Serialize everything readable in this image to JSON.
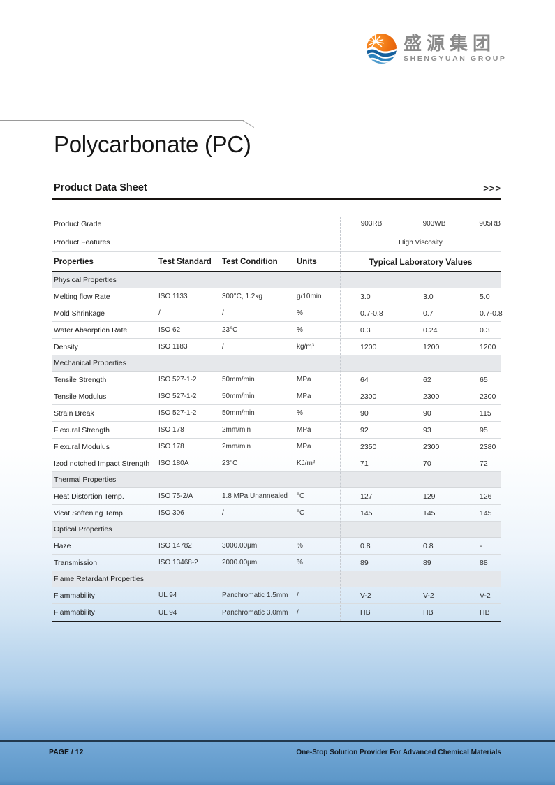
{
  "logo": {
    "company_cn": "盛源集团",
    "company_en": "SHENGYUAN GROUP",
    "colors": {
      "sun_orange": "#e8630c",
      "wave_dark": "#15609d",
      "wave_mid": "#2c82bd",
      "wave_light": "#4d9bcd",
      "text_gray": "#8a8a8a"
    }
  },
  "page": {
    "title": "Polycarbonate (PC)",
    "subtitle": "Product Data Sheet",
    "subtitle_arrows": ">>>"
  },
  "table": {
    "meta_rows": [
      {
        "label": "Product Grade",
        "values": [
          "903RB",
          "903WB",
          "905RB"
        ]
      },
      {
        "label": "Product Features",
        "merged_value": "High Viscosity"
      }
    ],
    "headers": {
      "properties": "Properties",
      "test_standard": "Test Standard",
      "test_condition": "Test Condition",
      "units": "Units",
      "values": "Typical Laboratory Values"
    },
    "sections": [
      {
        "title": "Physical Properties",
        "rows": [
          {
            "property": "Melting flow Rate",
            "standard": "ISO 1133",
            "condition": "300°C, 1.2kg",
            "units": "g/10min",
            "values": [
              "3.0",
              "3.0",
              "5.0"
            ]
          },
          {
            "property": "Mold Shrinkage",
            "standard": "/",
            "condition": "/",
            "units": "%",
            "values": [
              "0.7-0.8",
              "0.7",
              "0.7-0.8"
            ]
          },
          {
            "property": "Water Absorption Rate",
            "standard": "ISO 62",
            "condition": "23°C",
            "units": "%",
            "values": [
              "0.3",
              "0.24",
              "0.3"
            ]
          },
          {
            "property": "Density",
            "standard": "ISO 1183",
            "condition": "/",
            "units": "kg/m³",
            "values": [
              "1200",
              "1200",
              "1200"
            ]
          }
        ]
      },
      {
        "title": "Mechanical Properties",
        "rows": [
          {
            "property": "Tensile Strength",
            "standard": "ISO 527-1-2",
            "condition": "50mm/min",
            "units": "MPa",
            "values": [
              "64",
              "62",
              "65"
            ]
          },
          {
            "property": "Tensile Modulus",
            "standard": "ISO 527-1-2",
            "condition": "50mm/min",
            "units": "MPa",
            "values": [
              "2300",
              "2300",
              "2300"
            ]
          },
          {
            "property": "Strain Break",
            "standard": "ISO 527-1-2",
            "condition": "50mm/min",
            "units": "%",
            "values": [
              "90",
              "90",
              "115"
            ]
          },
          {
            "property": "Flexural Strength",
            "standard": "ISO 178",
            "condition": "2mm/min",
            "units": "MPa",
            "values": [
              "92",
              "93",
              "95"
            ]
          },
          {
            "property": "Flexural Modulus",
            "standard": "ISO 178",
            "condition": "2mm/min",
            "units": "MPa",
            "values": [
              "2350",
              "2300",
              "2380"
            ]
          },
          {
            "property": "Izod notched Impact Strength",
            "standard": "ISO 180A",
            "condition": "23°C",
            "units": "KJ/m²",
            "values": [
              "71",
              "70",
              "72"
            ]
          }
        ]
      },
      {
        "title": "Thermal Properties",
        "rows": [
          {
            "property": "Heat Distortion Temp.",
            "standard": "ISO 75-2/A",
            "condition": "1.8 MPa Unannealed",
            "units": "°C",
            "values": [
              "127",
              "129",
              "126"
            ]
          },
          {
            "property": "Vicat Softening Temp.",
            "standard": "ISO 306",
            "condition": "/",
            "units": "°C",
            "values": [
              "145",
              "145",
              "145"
            ]
          }
        ]
      },
      {
        "title": "Optical Properties",
        "rows": [
          {
            "property": "Haze",
            "standard": "ISO 14782",
            "condition": "3000.00μm",
            "units": "%",
            "values": [
              "0.8",
              "0.8",
              "-"
            ]
          },
          {
            "property": "Transmission",
            "standard": "ISO 13468-2",
            "condition": "2000.00μm",
            "units": "%",
            "values": [
              "89",
              "89",
              "88"
            ]
          }
        ]
      },
      {
        "title": "Flame Retardant Properties",
        "rows": [
          {
            "property": "Flammability",
            "standard": "UL 94",
            "condition": "Panchromatic 1.5mm",
            "units": "/",
            "values": [
              "V-2",
              "V-2",
              "V-2"
            ]
          },
          {
            "property": "Flammability",
            "standard": "UL 94",
            "condition": "Panchromatic 3.0mm",
            "units": "/",
            "values": [
              "HB",
              "HB",
              "HB"
            ]
          }
        ]
      }
    ]
  },
  "footer": {
    "page_label": "PAGE / 12",
    "tagline": "One-Stop Solution Provider For Advanced Chemical Materials"
  }
}
